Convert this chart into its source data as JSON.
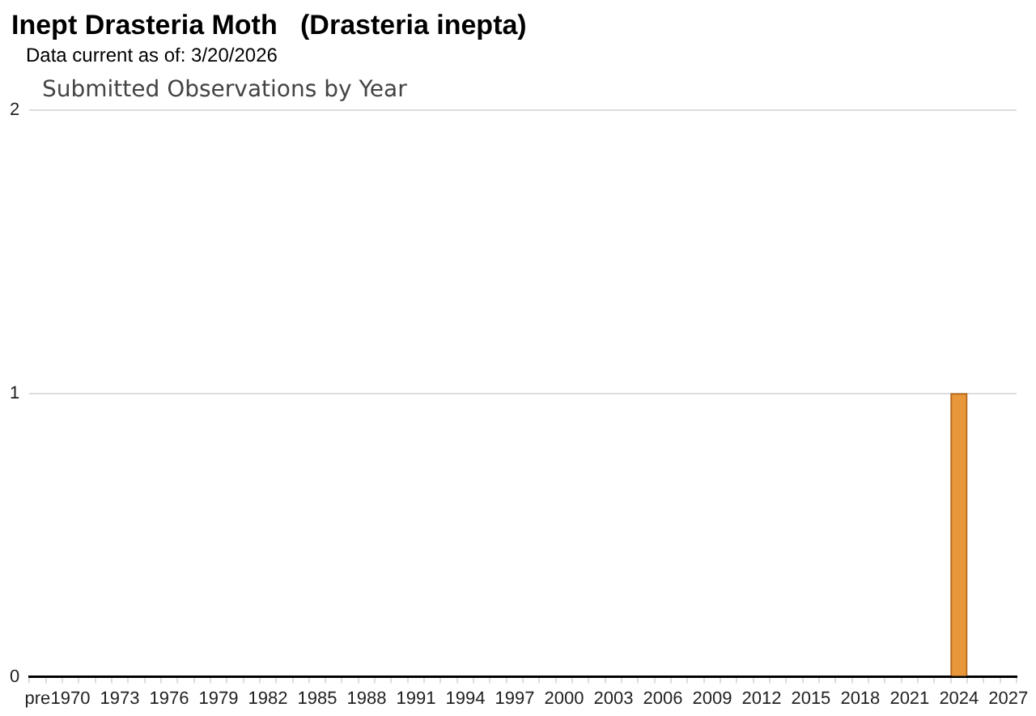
{
  "chart_data": {
    "type": "bar",
    "title": "Inept Drasteria Moth   (Drasteria inepta)",
    "subtitle": "Data current as of: 3/20/2026",
    "annotations": [
      "Submitted Observations by Year"
    ],
    "categories": [
      "pre",
      null,
      "1970",
      null,
      null,
      "1973",
      null,
      null,
      "1976",
      null,
      null,
      "1979",
      null,
      null,
      "1982",
      null,
      null,
      "1985",
      null,
      null,
      "1988",
      null,
      null,
      "1991",
      null,
      null,
      "1994",
      null,
      null,
      "1997",
      null,
      null,
      "2000",
      null,
      null,
      "2003",
      null,
      null,
      "2006",
      null,
      null,
      "2009",
      null,
      null,
      "2012",
      null,
      null,
      "2015",
      null,
      null,
      "2018",
      null,
      null,
      "2021",
      null,
      null,
      "2024",
      null,
      null,
      "2027"
    ],
    "values": [
      0,
      0,
      0,
      0,
      0,
      0,
      0,
      0,
      0,
      0,
      0,
      0,
      0,
      0,
      0,
      0,
      0,
      0,
      0,
      0,
      0,
      0,
      0,
      0,
      0,
      0,
      0,
      0,
      0,
      0,
      0,
      0,
      0,
      0,
      0,
      0,
      0,
      0,
      0,
      0,
      0,
      0,
      0,
      0,
      0,
      0,
      0,
      0,
      0,
      0,
      0,
      0,
      0,
      0,
      0,
      0,
      1,
      0,
      0,
      0
    ],
    "color": "#e8983a",
    "ylim": [
      0,
      2
    ],
    "yticks": [
      0,
      1,
      2
    ],
    "grid": "y",
    "legend": false
  }
}
